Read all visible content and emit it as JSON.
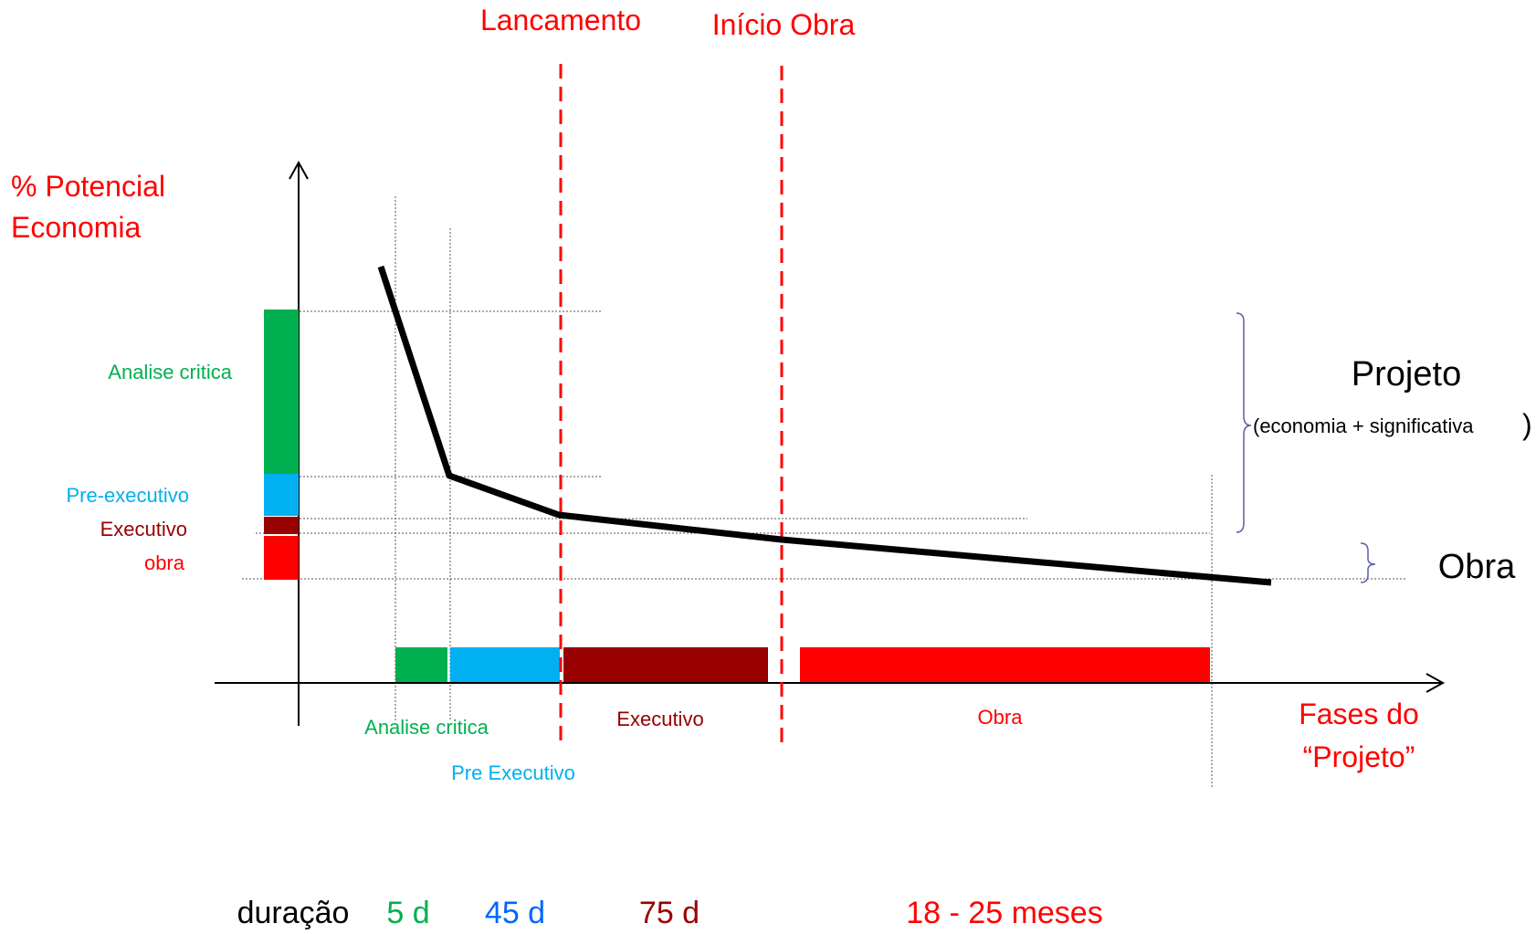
{
  "colors": {
    "analise": "#00b050",
    "pre": "#00b0f0",
    "executivo": "#990000",
    "obra": "#ff0000",
    "annotation_red": "#ff0000",
    "duration_blue": "#0066ff",
    "bracket": "#5b5ea6",
    "curve": "#000000"
  },
  "milestones": {
    "lancamento": "Lancamento",
    "inicio_obra": "Início Obra"
  },
  "y_axis_title": {
    "line1": "% Potencial",
    "line2": "Economia"
  },
  "x_axis_title": {
    "line1": "Fases do",
    "line2": "“Projeto”"
  },
  "left_labels": {
    "analise": "Analise critica",
    "pre": "Pre-executivo",
    "executivo": "Executivo",
    "obra": "obra"
  },
  "phase_labels": {
    "analise": "Analise critica",
    "pre": "Pre Executivo",
    "executivo": "Executivo",
    "obra": "Obra"
  },
  "right_labels": {
    "projeto": "Projeto",
    "projeto_sub": "(economia + significativa",
    "projeto_paren": ")",
    "obra": "Obra"
  },
  "durations": {
    "label": "duração",
    "analise": "5 d",
    "pre": "45 d",
    "executivo": "75 d",
    "obra": "18 - 25 meses"
  },
  "icons": {
    "y_axis": "arrow-up-icon",
    "x_axis": "arrow-right-icon"
  }
}
